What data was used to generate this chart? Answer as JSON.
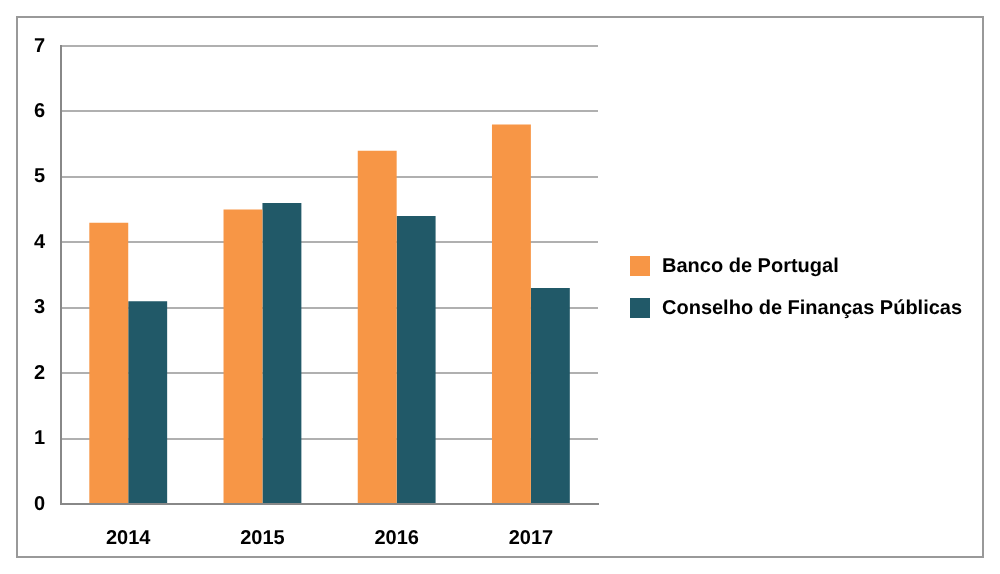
{
  "chart_data": {
    "type": "bar",
    "categories": [
      "2014",
      "2015",
      "2016",
      "2017"
    ],
    "series": [
      {
        "name": "Banco de Portugal",
        "color": "#f79646",
        "values": [
          4.3,
          4.5,
          5.4,
          5.8
        ]
      },
      {
        "name": "Conselho de Finanças Públicas",
        "color": "#215968",
        "values": [
          3.1,
          4.6,
          4.4,
          3.3
        ]
      }
    ],
    "ylim": [
      0,
      7
    ],
    "yticks": [
      0,
      1,
      2,
      3,
      4,
      5,
      6,
      7
    ],
    "grid": "y",
    "legend": "right"
  }
}
